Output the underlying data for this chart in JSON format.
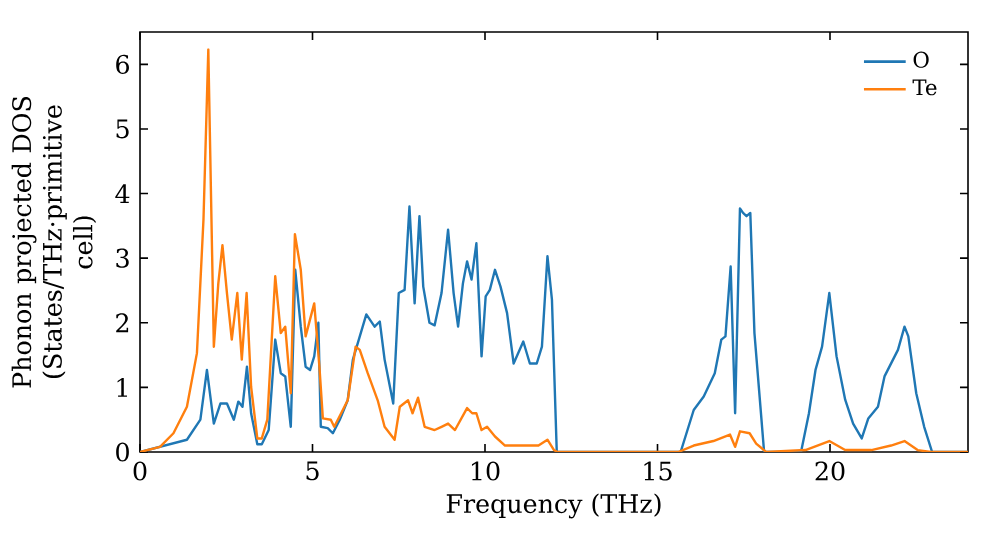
{
  "chart_data": {
    "type": "line",
    "xlabel": "Frequency (THz)",
    "ylabel": "Phonon projected DOS (States/THz·primitive cell)",
    "xlim": [
      0,
      24
    ],
    "ylim": [
      0,
      6.5
    ],
    "xticks": [
      0,
      5,
      10,
      15,
      20
    ],
    "yticks": [
      0,
      1,
      2,
      3,
      4,
      5,
      6
    ],
    "legend": "top right",
    "grid": false,
    "series": [
      {
        "name": "O",
        "color": "#1f77b4",
        "x": [
          0,
          1.36,
          1.75,
          1.94,
          2.14,
          2.33,
          2.52,
          2.72,
          2.85,
          2.97,
          3.1,
          3.22,
          3.4,
          3.53,
          3.73,
          3.92,
          4.08,
          4.21,
          4.37,
          4.5,
          4.66,
          4.8,
          4.93,
          5.05,
          5.17,
          5.24,
          5.44,
          5.59,
          5.79,
          6.02,
          6.17,
          6.31,
          6.56,
          6.8,
          6.95,
          7.09,
          7.34,
          7.5,
          7.67,
          7.81,
          7.96,
          8.1,
          8.21,
          8.39,
          8.54,
          8.74,
          8.93,
          9.09,
          9.22,
          9.36,
          9.48,
          9.61,
          9.75,
          9.9,
          10.02,
          10.14,
          10.29,
          10.45,
          10.64,
          10.83,
          11.11,
          11.3,
          11.5,
          11.65,
          11.81,
          11.94,
          12.08,
          15.67,
          16.05,
          16.34,
          16.66,
          16.85,
          16.97,
          17.12,
          17.25,
          17.39,
          17.48,
          17.58,
          17.69,
          17.81,
          18.09,
          19.16,
          19.39,
          19.58,
          19.77,
          19.98,
          20.19,
          20.44,
          20.67,
          20.92,
          21.11,
          21.39,
          21.58,
          21.97,
          22.16,
          22.27,
          22.5,
          22.73,
          22.96,
          24
        ],
        "values": [
          0,
          0.19,
          0.5,
          1.27,
          0.44,
          0.75,
          0.75,
          0.5,
          0.78,
          0.7,
          1.32,
          0.6,
          0.12,
          0.12,
          0.34,
          1.74,
          1.22,
          1.17,
          0.39,
          2.82,
          1.94,
          1.32,
          1.27,
          1.48,
          2.0,
          0.39,
          0.37,
          0.29,
          0.5,
          0.8,
          1.43,
          1.68,
          2.13,
          1.94,
          2.02,
          1.43,
          0.75,
          2.46,
          2.51,
          3.8,
          2.3,
          3.65,
          2.56,
          2.0,
          1.96,
          2.46,
          3.44,
          2.46,
          1.94,
          2.61,
          2.95,
          2.67,
          3.23,
          1.48,
          2.41,
          2.51,
          2.82,
          2.56,
          2.15,
          1.37,
          1.71,
          1.37,
          1.37,
          1.63,
          3.03,
          2.36,
          0,
          0,
          0.65,
          0.86,
          1.22,
          1.74,
          1.79,
          2.87,
          0.6,
          3.77,
          3.7,
          3.65,
          3.7,
          1.84,
          0,
          0,
          0.6,
          1.27,
          1.63,
          2.46,
          1.48,
          0.81,
          0.44,
          0.21,
          0.52,
          0.7,
          1.17,
          1.58,
          1.94,
          1.79,
          0.91,
          0.39,
          0,
          0
        ]
      },
      {
        "name": "Te",
        "color": "#ff7f0e",
        "x": [
          0,
          0.58,
          0.97,
          1.36,
          1.65,
          1.84,
          1.98,
          2.14,
          2.27,
          2.39,
          2.52,
          2.66,
          2.82,
          2.95,
          3.09,
          3.22,
          3.4,
          3.53,
          3.69,
          3.92,
          4.08,
          4.21,
          4.37,
          4.49,
          4.66,
          4.8,
          5.05,
          5.2,
          5.3,
          5.53,
          5.63,
          5.83,
          6.02,
          6.25,
          6.37,
          6.6,
          6.89,
          7.09,
          7.38,
          7.53,
          7.77,
          7.9,
          8.06,
          8.25,
          8.54,
          8.74,
          8.93,
          9.13,
          9.48,
          9.63,
          9.75,
          9.9,
          10.06,
          10.29,
          10.58,
          11.07,
          11.55,
          11.81,
          12.0,
          12.1,
          15.6,
          16.05,
          16.62,
          17.1,
          17.25,
          17.39,
          17.67,
          17.86,
          18.15,
          19.29,
          19.98,
          20.44,
          21.2,
          21.77,
          22.16,
          22.54,
          22.92,
          24
        ],
        "values": [
          0,
          0.08,
          0.29,
          0.7,
          1.53,
          3.6,
          6.23,
          1.63,
          2.61,
          3.2,
          2.46,
          1.74,
          2.46,
          1.43,
          2.46,
          1.01,
          0.21,
          0.21,
          0.5,
          2.72,
          1.84,
          1.94,
          0.91,
          3.37,
          2.82,
          1.79,
          2.3,
          1.32,
          0.52,
          0.5,
          0.39,
          0.6,
          0.8,
          1.63,
          1.58,
          1.22,
          0.8,
          0.39,
          0.19,
          0.7,
          0.8,
          0.6,
          0.84,
          0.39,
          0.34,
          0.39,
          0.44,
          0.34,
          0.68,
          0.6,
          0.6,
          0.34,
          0.39,
          0.24,
          0.1,
          0.1,
          0.1,
          0.19,
          0.03,
          0,
          0,
          0.1,
          0.17,
          0.27,
          0.08,
          0.32,
          0.29,
          0.13,
          0,
          0.03,
          0.17,
          0.03,
          0.03,
          0.1,
          0.17,
          0.03,
          0,
          0
        ]
      }
    ]
  }
}
